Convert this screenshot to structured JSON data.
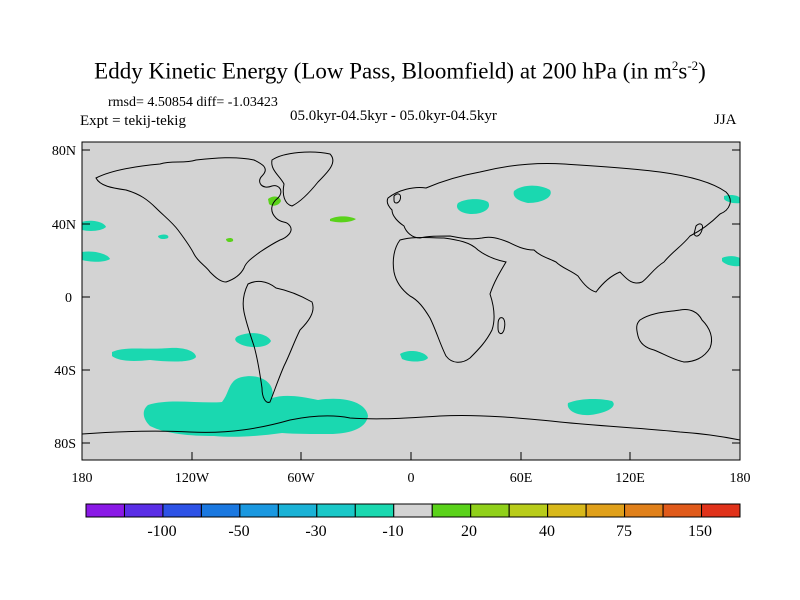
{
  "title": {
    "text": "Eddy Kinetic Energy (Low Pass, Bloomfield) at 200 hPa (in m",
    "sup1": "2",
    "mid": "s",
    "sup2": "-2",
    "close": ")"
  },
  "stats": "rmsd= 4.50854  diff= -1.03423",
  "expt": "Expt = tekij-tekig",
  "period": "05.0kyr-04.5kyr - 05.0kyr-04.5kyr",
  "season": "JJA",
  "map": {
    "projection": "cylindrical-equidistant",
    "background_color": "#d3d3d3",
    "lat_ticks": [
      "80N",
      "40N",
      "0",
      "40S",
      "80S"
    ],
    "lon_ticks": [
      "180",
      "120W",
      "60W",
      "0",
      "60E",
      "120E",
      "180"
    ]
  },
  "colorbar": {
    "colors": [
      "#8a19e6",
      "#5a2ee6",
      "#2d52e6",
      "#1a78e0",
      "#1a98e0",
      "#1ab2d6",
      "#1ac8c8",
      "#1ad8b0",
      "#d3d3d3",
      "#5ad21a",
      "#90d01a",
      "#b8cc1a",
      "#d8b81a",
      "#e0a01a",
      "#e0801a",
      "#e05a1a",
      "#e0321a"
    ],
    "labels": [
      "-100",
      "-50",
      "-30",
      "-10",
      "20",
      "40",
      "75",
      "150"
    ]
  },
  "anomaly_colors": {
    "negative": "#1ad8b0",
    "positive": "#5ad21a"
  }
}
